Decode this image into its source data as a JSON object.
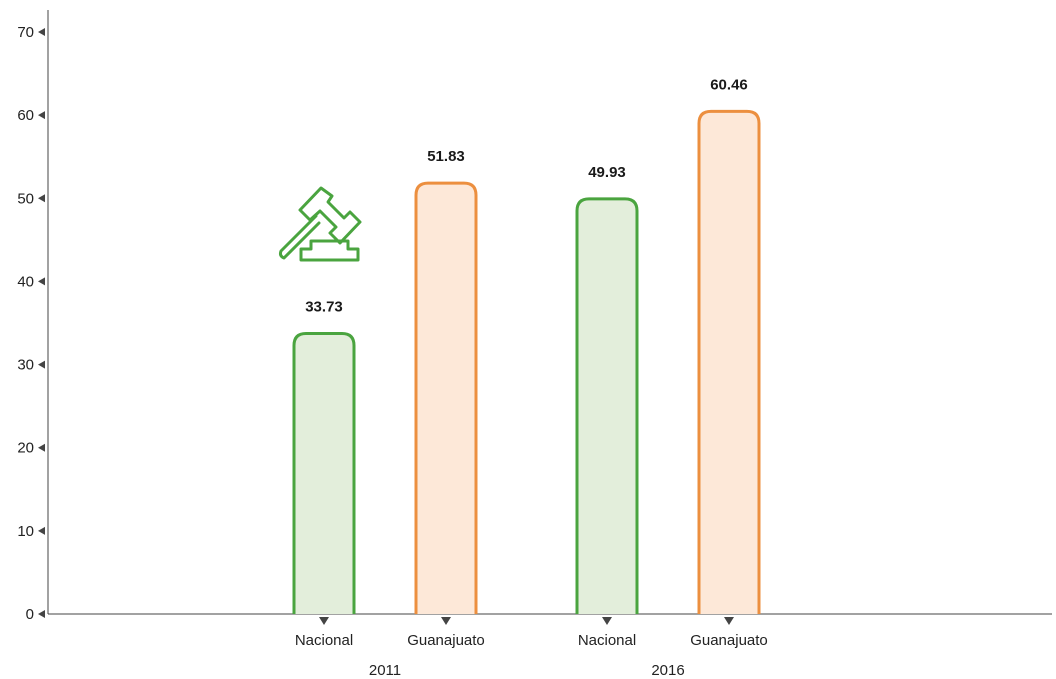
{
  "chart_data": {
    "type": "bar",
    "title": "",
    "xlabel": "",
    "ylabel": "",
    "ylim": [
      0,
      70
    ],
    "yticks": [
      0,
      10,
      20,
      30,
      40,
      50,
      60,
      70
    ],
    "grid": false,
    "legend": "none",
    "groups": [
      {
        "label": "2011",
        "bars": [
          {
            "category": "Nacional",
            "value": 33.73,
            "label": "33.73",
            "series": "Nacional"
          },
          {
            "category": "Guanajuato",
            "value": 51.83,
            "label": "51.83",
            "series": "Guanajuato"
          }
        ]
      },
      {
        "label": "2016",
        "bars": [
          {
            "category": "Nacional",
            "value": 49.93,
            "label": "49.93",
            "series": "Nacional"
          },
          {
            "category": "Guanajuato",
            "value": 60.46,
            "label": "60.46",
            "series": "Guanajuato"
          }
        ]
      }
    ],
    "colors": {
      "Nacional": {
        "stroke": "#4aa43f",
        "fill": "#e3eedb"
      },
      "Guanajuato": {
        "stroke": "#ec8f3f",
        "fill": "#fde8d8"
      },
      "axis": "#444444"
    },
    "decoration": {
      "icon": "gavel-icon",
      "color": "#4aa43f"
    }
  }
}
